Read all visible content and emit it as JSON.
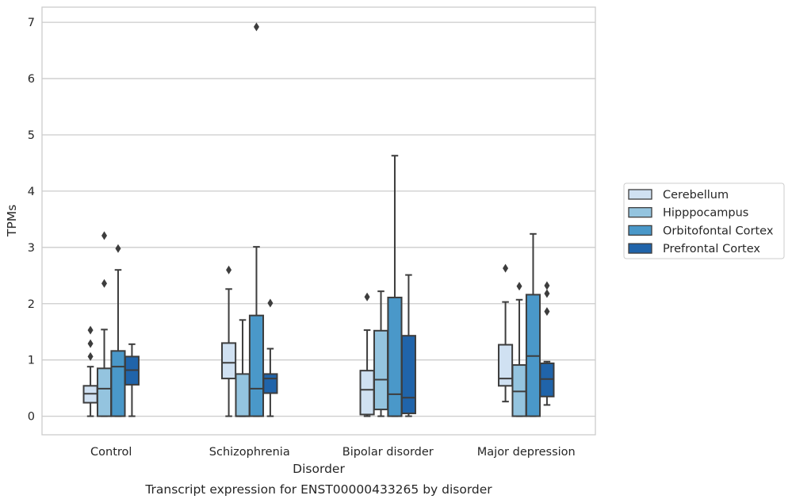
{
  "chart_data": {
    "type": "boxplot",
    "title": "",
    "caption": "Transcript expression for ENST00000433265 by disorder",
    "xlabel": "Disorder",
    "ylabel": "TPMs",
    "ylim": [
      -0.33,
      7.27
    ],
    "yticks": [
      "0",
      "1",
      "2",
      "3",
      "4",
      "5",
      "6",
      "7"
    ],
    "categories": [
      "Control",
      "Schizophrenia",
      "Bipolar disorder",
      "Major depression"
    ],
    "grid": "horizontal",
    "legend_position": "right",
    "series": [
      {
        "name": "Cerebellum",
        "color": "#d0e1f2",
        "boxes": [
          {
            "min": 0.0,
            "q1": 0.24,
            "median": 0.4,
            "q3": 0.54,
            "max": 0.88,
            "outliers": [
              1.06,
              1.29,
              1.53
            ]
          },
          {
            "min": 0.0,
            "q1": 0.67,
            "median": 0.95,
            "q3": 1.3,
            "max": 2.26,
            "outliers": [
              2.6
            ]
          },
          {
            "min": 0.0,
            "q1": 0.03,
            "median": 0.47,
            "q3": 0.81,
            "max": 1.53,
            "outliers": [
              2.12
            ]
          },
          {
            "min": 0.26,
            "q1": 0.54,
            "median": 0.67,
            "q3": 1.27,
            "max": 2.03,
            "outliers": [
              2.63
            ]
          }
        ]
      },
      {
        "name": "Hipppocampus",
        "color": "#94c4df",
        "boxes": [
          {
            "min": 0.0,
            "q1": 0.0,
            "median": 0.49,
            "q3": 0.85,
            "max": 1.54,
            "outliers": [
              2.36,
              3.21
            ]
          },
          {
            "min": 0.0,
            "q1": 0.0,
            "median": 0.0,
            "q3": 0.75,
            "max": 1.71,
            "outliers": []
          },
          {
            "min": 0.0,
            "q1": 0.12,
            "median": 0.65,
            "q3": 1.52,
            "max": 2.22,
            "outliers": []
          },
          {
            "min": 0.0,
            "q1": 0.0,
            "median": 0.44,
            "q3": 0.91,
            "max": 2.07,
            "outliers": [
              2.31
            ]
          }
        ]
      },
      {
        "name": "Orbitofontal Cortex",
        "color": "#4a98c9",
        "boxes": [
          {
            "min": 0.0,
            "q1": 0.0,
            "median": 0.88,
            "q3": 1.16,
            "max": 2.6,
            "outliers": [
              2.98
            ]
          },
          {
            "min": 0.0,
            "q1": 0.0,
            "median": 0.49,
            "q3": 1.79,
            "max": 3.01,
            "outliers": [
              6.92
            ]
          },
          {
            "min": 0.0,
            "q1": 0.0,
            "median": 0.39,
            "q3": 2.11,
            "max": 4.63,
            "outliers": []
          },
          {
            "min": 0.0,
            "q1": 0.0,
            "median": 1.07,
            "q3": 2.16,
            "max": 3.24,
            "outliers": []
          }
        ]
      },
      {
        "name": "Prefrontal Cortex",
        "color": "#2064aa",
        "boxes": [
          {
            "min": 0.0,
            "q1": 0.56,
            "median": 0.82,
            "q3": 1.06,
            "max": 1.28,
            "outliers": []
          },
          {
            "min": 0.0,
            "q1": 0.41,
            "median": 0.67,
            "q3": 0.75,
            "max": 1.2,
            "outliers": [
              2.01
            ]
          },
          {
            "min": 0.0,
            "q1": 0.05,
            "median": 0.33,
            "q3": 1.43,
            "max": 2.51,
            "outliers": []
          },
          {
            "min": 0.2,
            "q1": 0.35,
            "median": 0.66,
            "q3": 0.94,
            "max": 0.97,
            "outliers": [
              1.86,
              2.18,
              2.32
            ]
          }
        ]
      }
    ]
  }
}
